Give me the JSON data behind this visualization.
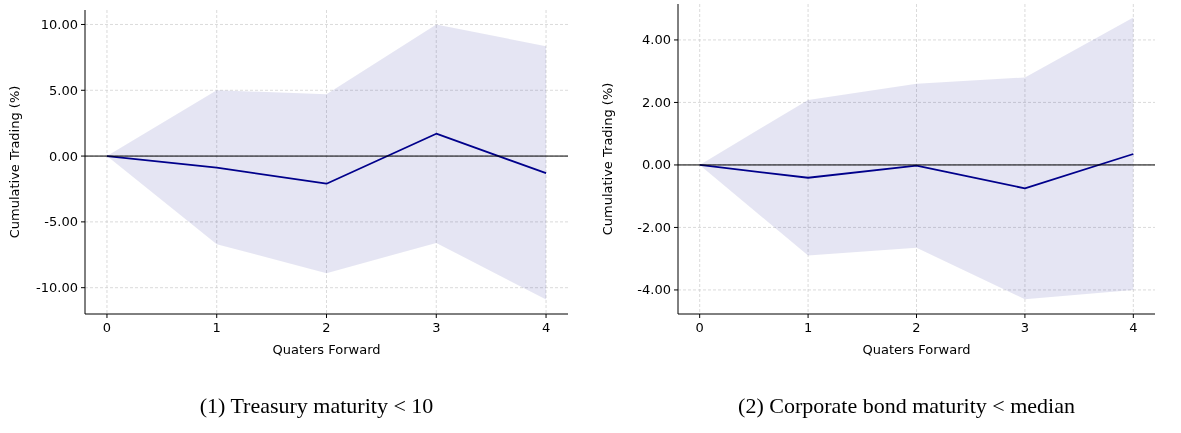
{
  "chart_data": [
    {
      "type": "line",
      "title": "(1) Treasury maturity < 10",
      "xlabel": "Quaters Forward",
      "ylabel": "Cumulative Trading (%)",
      "x": [
        0,
        1,
        2,
        3,
        4
      ],
      "xlim": [
        -0.2,
        4.2
      ],
      "xticks": [
        0,
        1,
        2,
        3,
        4
      ],
      "ylim": [
        -12,
        11.1
      ],
      "yticks": [
        {
          "value": -10,
          "label": "-10.00"
        },
        {
          "value": -5,
          "label": "-5.00"
        },
        {
          "value": 0,
          "label": "0.00"
        },
        {
          "value": 5,
          "label": "5.00"
        },
        {
          "value": 10,
          "label": "10.00"
        }
      ],
      "grid": true,
      "series": [
        {
          "color": "#00008b",
          "values": [
            0,
            -0.88,
            -2.1,
            1.7,
            -1.3
          ],
          "lower": [
            0,
            -6.7,
            -8.9,
            -6.6,
            -10.9
          ],
          "upper": [
            0,
            5.0,
            4.7,
            10.0,
            8.35
          ]
        }
      ],
      "ref_lines": [
        {
          "axis": "y",
          "value": 0,
          "color": "#000000"
        }
      ]
    },
    {
      "type": "line",
      "title": "(2) Corporate bond maturity < median",
      "xlabel": "Quaters Forward",
      "ylabel": "Cumulative Trading (%)",
      "x": [
        0,
        1,
        2,
        3,
        4
      ],
      "xlim": [
        -0.2,
        4.2
      ],
      "xticks": [
        0,
        1,
        2,
        3,
        4
      ],
      "ylim": [
        -4.77,
        5.15
      ],
      "yticks": [
        {
          "value": -4,
          "label": "-4.00"
        },
        {
          "value": -2,
          "label": "-2.00"
        },
        {
          "value": 0,
          "label": "0.00"
        },
        {
          "value": 2,
          "label": "2.00"
        },
        {
          "value": 4,
          "label": "4.00"
        }
      ],
      "grid": true,
      "series": [
        {
          "color": "#00008b",
          "values": [
            0,
            -0.41,
            -0.02,
            -0.75,
            0.35
          ],
          "lower": [
            0,
            -2.9,
            -2.65,
            -4.3,
            -4.0
          ],
          "upper": [
            0,
            2.08,
            2.6,
            2.8,
            4.72
          ]
        }
      ],
      "ref_lines": [
        {
          "axis": "y",
          "value": 0,
          "color": "#000000"
        }
      ]
    }
  ]
}
